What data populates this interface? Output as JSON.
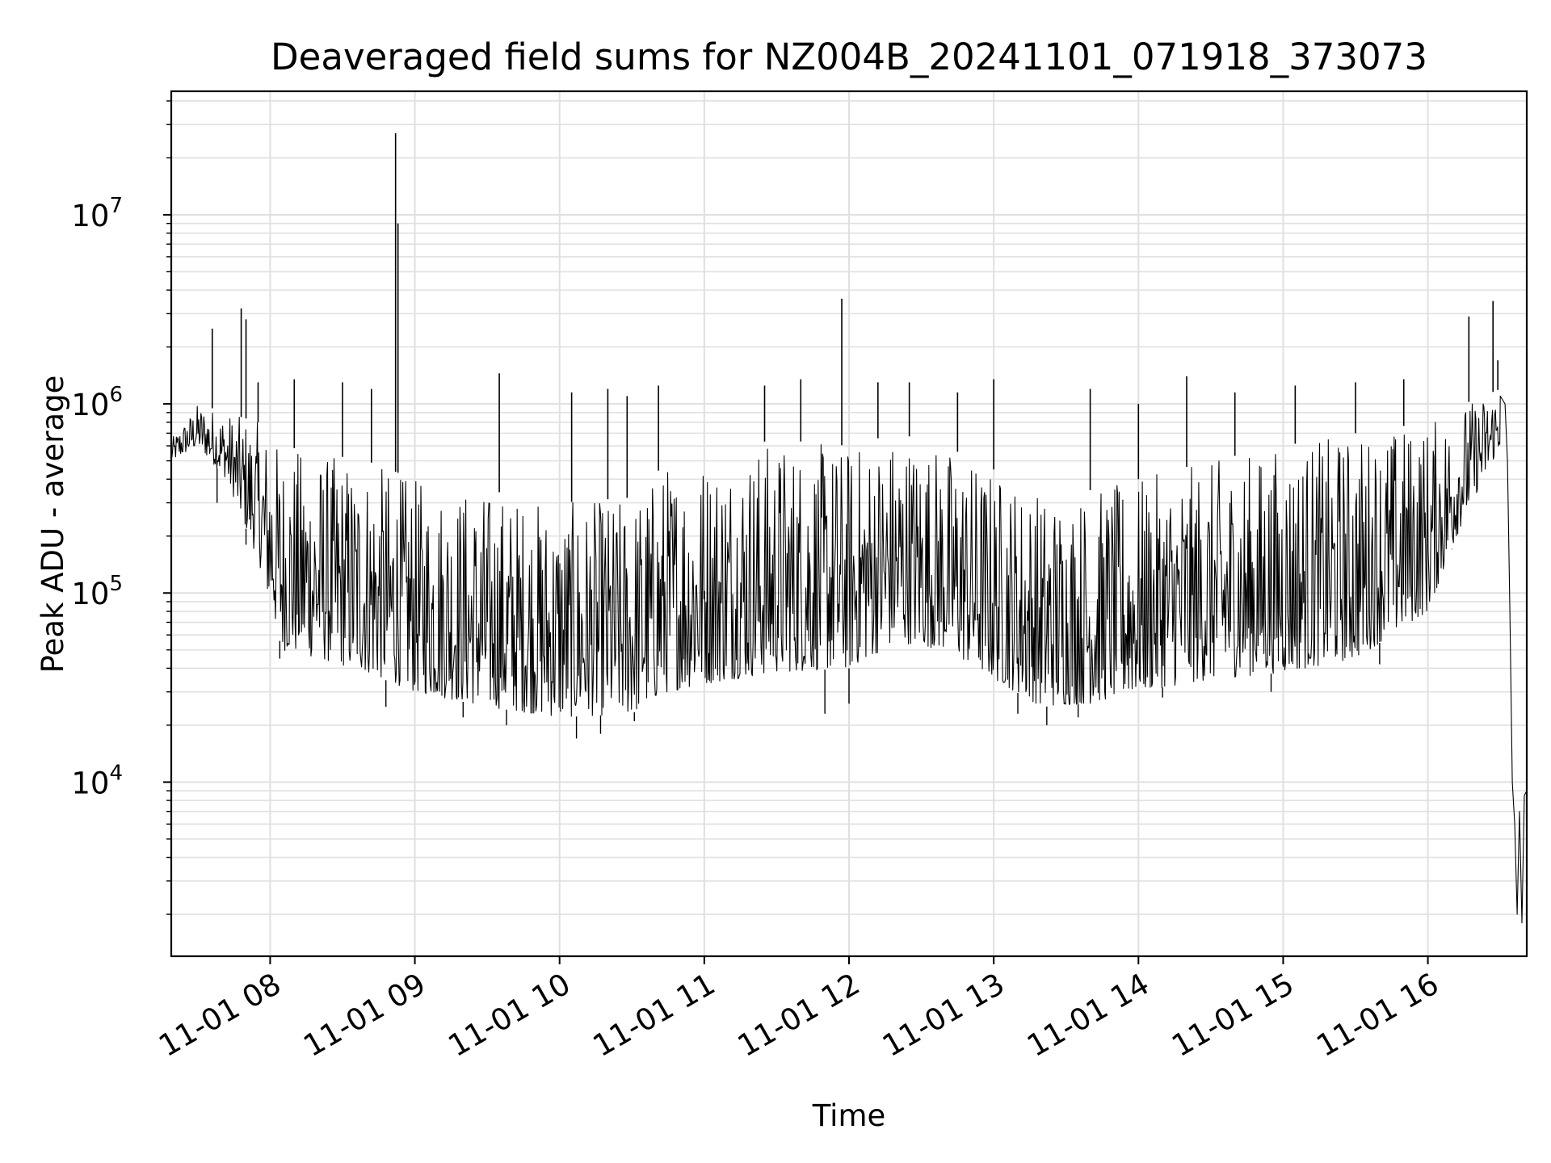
{
  "chart_data": {
    "type": "line",
    "title": "Deaveraged field sums for NZ004B_20241101_071918_373073",
    "xlabel": "Time",
    "ylabel": "Peak ADU - average",
    "yscale": "log",
    "ylim": [
      1200,
      45000000
    ],
    "xlim": [
      "2024-11-01 07:19",
      "2024-11-01 16:41"
    ],
    "grid": true,
    "line_color": "#000000",
    "grid_color": "#e0e0e0",
    "x_ticks": [
      "11-01 08",
      "11-01 09",
      "11-01 10",
      "11-01 11",
      "11-01 12",
      "11-01 13",
      "11-01 14",
      "11-01 15",
      "11-01 16"
    ],
    "x_tick_times": [
      "2024-11-01 08:00",
      "2024-11-01 09:00",
      "2024-11-01 10:00",
      "2024-11-01 11:00",
      "2024-11-01 12:00",
      "2024-11-01 13:00",
      "2024-11-01 14:00",
      "2024-11-01 15:00",
      "2024-11-01 16:00"
    ],
    "y_ticks": [
      {
        "base": "10",
        "exp": "4",
        "value": 10000
      },
      {
        "base": "10",
        "exp": "5",
        "value": 100000
      },
      {
        "base": "10",
        "exp": "6",
        "value": 1000000
      },
      {
        "base": "10",
        "exp": "7",
        "value": 10000000
      }
    ],
    "series": [
      {
        "lower": [
          [
            "2024-11-01 07:19",
            500000
          ],
          [
            "2024-11-01 07:30",
            600000
          ],
          [
            "2024-11-01 07:42",
            400000
          ],
          [
            "2024-11-01 07:55",
            150000
          ],
          [
            "2024-11-01 08:05",
            50000
          ],
          [
            "2024-11-01 08:20",
            45000
          ],
          [
            "2024-11-01 08:40",
            38000
          ],
          [
            "2024-11-01 09:00",
            30000
          ],
          [
            "2024-11-01 09:30",
            25000
          ],
          [
            "2024-11-01 10:00",
            22000
          ],
          [
            "2024-11-01 10:30",
            23000
          ],
          [
            "2024-11-01 10:45",
            30000
          ],
          [
            "2024-11-01 11:00",
            33000
          ],
          [
            "2024-11-01 11:30",
            38000
          ],
          [
            "2024-11-01 12:00",
            40000
          ],
          [
            "2024-11-01 12:20",
            55000
          ],
          [
            "2024-11-01 12:40",
            50000
          ],
          [
            "2024-11-01 13:00",
            35000
          ],
          [
            "2024-11-01 13:20",
            25000
          ],
          [
            "2024-11-01 13:40",
            26000
          ],
          [
            "2024-11-01 14:00",
            30000
          ],
          [
            "2024-11-01 14:30",
            35000
          ],
          [
            "2024-11-01 15:00",
            38000
          ],
          [
            "2024-11-01 15:30",
            45000
          ],
          [
            "2024-11-01 16:00",
            80000
          ],
          [
            "2024-11-01 16:15",
            250000
          ],
          [
            "2024-11-01 16:30",
            600000
          ]
        ],
        "upper": [
          [
            "2024-11-01 07:19",
            650000
          ],
          [
            "2024-11-01 07:30",
            1000000
          ],
          [
            "2024-11-01 07:42",
            900000
          ],
          [
            "2024-11-01 07:55",
            800000
          ],
          [
            "2024-11-01 08:05",
            600000
          ],
          [
            "2024-11-01 08:20",
            550000
          ],
          [
            "2024-11-01 08:40",
            500000
          ],
          [
            "2024-11-01 09:00",
            400000
          ],
          [
            "2024-11-01 09:30",
            350000
          ],
          [
            "2024-11-01 10:00",
            300000
          ],
          [
            "2024-11-01 10:30",
            320000
          ],
          [
            "2024-11-01 10:45",
            500000
          ],
          [
            "2024-11-01 11:00",
            550000
          ],
          [
            "2024-11-01 11:30",
            650000
          ],
          [
            "2024-11-01 12:00",
            600000
          ],
          [
            "2024-11-01 12:20",
            700000
          ],
          [
            "2024-11-01 12:40",
            600000
          ],
          [
            "2024-11-01 13:00",
            450000
          ],
          [
            "2024-11-01 13:20",
            350000
          ],
          [
            "2024-11-01 13:40",
            350000
          ],
          [
            "2024-11-01 14:00",
            400000
          ],
          [
            "2024-11-01 14:30",
            500000
          ],
          [
            "2024-11-01 15:00",
            600000
          ],
          [
            "2024-11-01 15:30",
            700000
          ],
          [
            "2024-11-01 16:00",
            800000
          ],
          [
            "2024-11-01 16:15",
            1000000
          ],
          [
            "2024-11-01 16:30",
            1200000
          ]
        ],
        "tail": [
          [
            "2024-11-01 16:30",
            1100000
          ],
          [
            "2024-11-01 16:32",
            1000000
          ],
          [
            "2024-11-01 16:33",
            500000
          ],
          [
            "2024-11-01 16:34",
            80000
          ],
          [
            "2024-11-01 16:35",
            10000
          ],
          [
            "2024-11-01 16:36",
            6000
          ],
          [
            "2024-11-01 16:37",
            2000
          ],
          [
            "2024-11-01 16:38",
            7000
          ],
          [
            "2024-11-01 16:39",
            1800
          ],
          [
            "2024-11-01 16:40",
            8500
          ],
          [
            "2024-11-01 16:41",
            9000
          ]
        ],
        "spikes": [
          [
            "2024-11-01 07:36",
            2500000
          ],
          [
            "2024-11-01 07:48",
            3200000
          ],
          [
            "2024-11-01 07:50",
            2800000
          ],
          [
            "2024-11-01 07:55",
            1300000
          ],
          [
            "2024-11-01 08:10",
            1350000
          ],
          [
            "2024-11-01 08:30",
            1300000
          ],
          [
            "2024-11-01 08:42",
            1200000
          ],
          [
            "2024-11-01 08:52",
            27000000
          ],
          [
            "2024-11-01 08:53",
            9000000
          ],
          [
            "2024-11-01 09:35",
            1450000
          ],
          [
            "2024-11-01 10:05",
            1150000
          ],
          [
            "2024-11-01 10:20",
            1200000
          ],
          [
            "2024-11-01 10:28",
            1100000
          ],
          [
            "2024-11-01 10:41",
            1250000
          ],
          [
            "2024-11-01 11:25",
            1250000
          ],
          [
            "2024-11-01 11:40",
            1350000
          ],
          [
            "2024-11-01 11:57",
            3600000
          ],
          [
            "2024-11-01 12:12",
            1300000
          ],
          [
            "2024-11-01 12:25",
            1300000
          ],
          [
            "2024-11-01 12:45",
            1150000
          ],
          [
            "2024-11-01 13:00",
            1350000
          ],
          [
            "2024-11-01 13:40",
            1200000
          ],
          [
            "2024-11-01 14:00",
            1000000
          ],
          [
            "2024-11-01 14:20",
            1400000
          ],
          [
            "2024-11-01 14:40",
            1150000
          ],
          [
            "2024-11-01 15:05",
            1250000
          ],
          [
            "2024-11-01 15:30",
            1300000
          ],
          [
            "2024-11-01 15:50",
            1350000
          ],
          [
            "2024-11-01 16:17",
            2900000
          ],
          [
            "2024-11-01 16:27",
            3500000
          ],
          [
            "2024-11-01 16:29",
            1700000
          ]
        ],
        "dips": [
          [
            "2024-11-01 07:38",
            300000
          ],
          [
            "2024-11-01 07:50",
            180000
          ],
          [
            "2024-11-01 08:04",
            45000
          ],
          [
            "2024-11-01 08:48",
            25000
          ],
          [
            "2024-11-01 09:20",
            22000
          ],
          [
            "2024-11-01 09:38",
            20000
          ],
          [
            "2024-11-01 10:07",
            17000
          ],
          [
            "2024-11-01 10:17",
            18000
          ],
          [
            "2024-11-01 10:31",
            21000
          ],
          [
            "2024-11-01 11:50",
            23000
          ],
          [
            "2024-11-01 12:00",
            26000
          ],
          [
            "2024-11-01 13:10",
            23000
          ],
          [
            "2024-11-01 13:22",
            20000
          ],
          [
            "2024-11-01 13:35",
            22000
          ],
          [
            "2024-11-01 14:10",
            28000
          ],
          [
            "2024-11-01 14:55",
            30000
          ],
          [
            "2024-11-01 15:40",
            42000
          ],
          [
            "2024-11-01 16:10",
            170000
          ]
        ]
      }
    ]
  }
}
